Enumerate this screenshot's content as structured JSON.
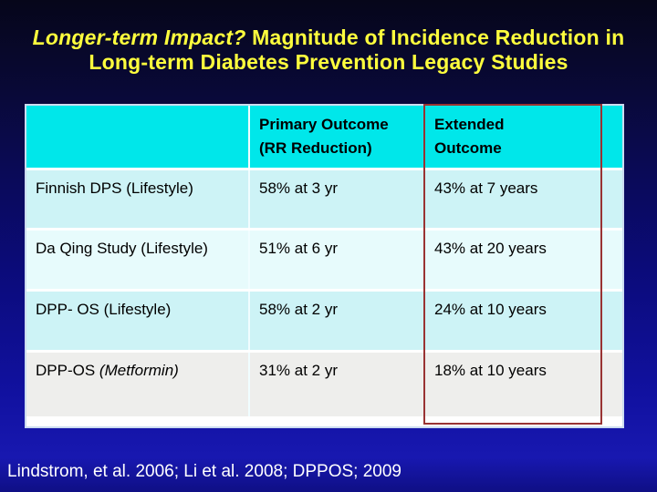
{
  "slide": {
    "title": {
      "emphasis": "Longer-term Impact?",
      "rest_line1": "  Magnitude of Incidence Reduction in",
      "line2": "Long-term Diabetes Prevention Legacy Studies"
    },
    "table": {
      "header": {
        "study_col": "",
        "primary_line1": "Primary Outcome",
        "primary_line2": "(RR Reduction)",
        "extended_line1": "Extended",
        "extended_line2": "Outcome"
      },
      "rows": [
        {
          "study": "Finnish DPS (Lifestyle)",
          "study_italic": "",
          "primary": "58% at 3 yr",
          "extended": "43% at 7 years"
        },
        {
          "study": "Da Qing Study (Lifestyle)",
          "study_italic": "",
          "primary": "51% at 6 yr",
          "extended": "43% at 20 years"
        },
        {
          "study": "DPP- OS (Lifestyle)",
          "study_italic": "",
          "primary": "58% at 2 yr",
          "extended": "24% at 10 years"
        },
        {
          "study": "DPP-OS",
          "study_italic": " (Metformin)",
          "primary": "31% at 2 yr",
          "extended": "18% at 10 years"
        }
      ]
    },
    "citation": "Lindstrom, et al. 2006; Li et al. 2008; DPPOS; 2009",
    "colors": {
      "title_yellow": "#ffff3d",
      "header_cyan": "#00e7ea",
      "row_cyan": "#cdf3f6",
      "row_cyan_light": "#e7fbfc",
      "row_gray": "#eeeeec",
      "highlight_red_border": "#993333",
      "background_bottom_blue": "#1818b0",
      "citation_white": "#ffffff"
    }
  }
}
